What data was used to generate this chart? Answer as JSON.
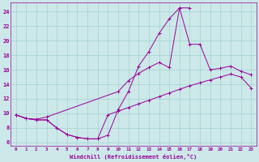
{
  "xlabel": "Windchill (Refroidissement éolien,°C)",
  "bg_color": "#cce8e8",
  "line_color": "#990099",
  "grid_color": "#99cccc",
  "xlim": [
    -0.5,
    23.5
  ],
  "ylim": [
    5.5,
    25.2
  ],
  "xticks": [
    0,
    1,
    2,
    3,
    4,
    5,
    6,
    7,
    8,
    9,
    10,
    11,
    12,
    13,
    14,
    15,
    16,
    17,
    18,
    19,
    20,
    21,
    22,
    23
  ],
  "yticks": [
    6,
    8,
    10,
    12,
    14,
    16,
    18,
    20,
    22,
    24
  ],
  "series": [
    {
      "x": [
        0,
        1,
        2,
        3,
        4,
        5,
        6,
        7,
        8,
        9,
        10,
        11,
        12,
        13,
        14,
        15,
        16,
        17
      ],
      "y": [
        9.8,
        9.3,
        9.1,
        9.1,
        8.0,
        7.1,
        6.7,
        6.5,
        6.5,
        7.0,
        10.5,
        13.0,
        16.5,
        18.5,
        21.0,
        23.0,
        24.5,
        24.5
      ]
    },
    {
      "x": [
        0,
        1,
        2,
        3,
        10,
        11,
        12,
        13,
        14,
        15,
        16,
        17,
        18,
        19,
        20,
        21,
        22,
        23
      ],
      "y": [
        9.8,
        9.3,
        9.2,
        9.5,
        13.0,
        14.5,
        15.5,
        16.3,
        17.0,
        16.3,
        24.5,
        19.5,
        19.5,
        16.0,
        16.2,
        16.5,
        15.8,
        15.3
      ]
    },
    {
      "x": [
        0,
        1,
        2,
        3,
        4,
        5,
        6,
        7,
        8,
        9,
        10,
        11,
        12,
        13,
        14,
        15,
        16,
        17,
        18,
        19,
        20,
        21,
        22,
        23
      ],
      "y": [
        9.8,
        9.3,
        9.1,
        9.1,
        8.0,
        7.1,
        6.7,
        6.5,
        6.5,
        9.8,
        10.3,
        10.8,
        11.3,
        11.8,
        12.3,
        12.8,
        13.3,
        13.8,
        14.2,
        14.6,
        15.0,
        15.4,
        15.0,
        13.5
      ]
    }
  ]
}
